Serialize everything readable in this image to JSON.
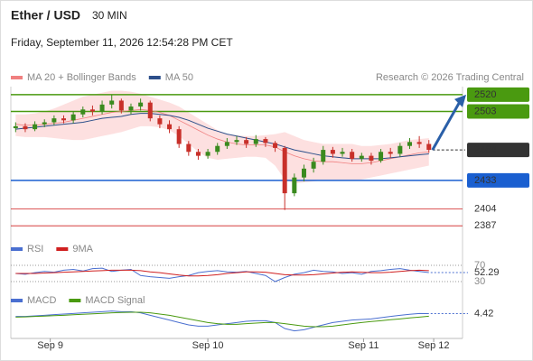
{
  "header": {
    "title": "Ether / USD",
    "interval": "30 MIN",
    "datetime": "Friday, September 11, 2026 12:54:28 PM CET",
    "credit": "Research © 2026 Trading Central"
  },
  "chart_data": [
    {
      "type": "candlestick",
      "xlim": [
        -0.5,
        46.5
      ],
      "xticks": [
        {
          "value": 3.6,
          "label": "Sep 9"
        },
        {
          "value": 20,
          "label": "Sep 10"
        },
        {
          "value": 36.2,
          "label": "Sep 11"
        },
        {
          "value": 43.5,
          "label": "Sep 12"
        }
      ],
      "ylim": [
        2378,
        2530
      ],
      "candles": {
        "up_color": "#3a8a1e",
        "down_color": "#c8302a",
        "open": [
          2486,
          2488,
          2485,
          2490,
          2492,
          2496,
          2494,
          2500,
          2505,
          2503,
          2510,
          2514,
          2504,
          2508,
          2512,
          2496,
          2490,
          2485,
          2470,
          2462,
          2458,
          2462,
          2468,
          2472,
          2474,
          2470,
          2475,
          2471,
          2466,
          2420,
          2436,
          2445,
          2452,
          2464,
          2460,
          2462,
          2455,
          2458,
          2453,
          2462,
          2460,
          2468,
          2472,
          2470
        ],
        "high": [
          2492,
          2491,
          2493,
          2495,
          2499,
          2499,
          2503,
          2508,
          2509,
          2514,
          2520,
          2516,
          2511,
          2516,
          2514,
          2499,
          2494,
          2488,
          2473,
          2465,
          2465,
          2471,
          2476,
          2478,
          2477,
          2479,
          2477,
          2473,
          2468,
          2440,
          2449,
          2456,
          2468,
          2467,
          2466,
          2465,
          2461,
          2461,
          2465,
          2466,
          2471,
          2476,
          2478,
          2474
        ],
        "low": [
          2482,
          2482,
          2483,
          2487,
          2489,
          2491,
          2491,
          2497,
          2499,
          2500,
          2506,
          2501,
          2500,
          2504,
          2493,
          2486,
          2481,
          2466,
          2458,
          2454,
          2455,
          2459,
          2465,
          2469,
          2466,
          2467,
          2467,
          2462,
          2403,
          2417,
          2432,
          2441,
          2449,
          2456,
          2457,
          2452,
          2452,
          2449,
          2451,
          2456,
          2457,
          2465,
          2466,
          2461
        ],
        "close": [
          2488,
          2485,
          2490,
          2492,
          2496,
          2494,
          2500,
          2505,
          2503,
          2510,
          2514,
          2504,
          2508,
          2512,
          2496,
          2490,
          2485,
          2470,
          2462,
          2458,
          2462,
          2468,
          2472,
          2474,
          2470,
          2475,
          2471,
          2466,
          2420,
          2436,
          2445,
          2452,
          2464,
          2460,
          2462,
          2455,
          2458,
          2453,
          2462,
          2460,
          2468,
          2472,
          2470,
          2464
        ]
      },
      "series": [
        {
          "name": "MA 20 + Bollinger Bands",
          "color": "#f08080",
          "band_color": "#fde0e0",
          "values": [
            2490,
            2489,
            2489,
            2490,
            2491,
            2492,
            2494,
            2496,
            2498,
            2500,
            2502,
            2503,
            2504,
            2505,
            2504,
            2502,
            2499,
            2494,
            2489,
            2484,
            2479,
            2475,
            2472,
            2470,
            2469,
            2469,
            2469,
            2467,
            2462,
            2458,
            2455,
            2453,
            2452,
            2452,
            2451,
            2450,
            2450,
            2451,
            2453,
            2455,
            2457,
            2459,
            2461,
            2462
          ],
          "upper": [
            2500,
            2500,
            2501,
            2503,
            2506,
            2510,
            2514,
            2518,
            2520,
            2522,
            2524,
            2524,
            2523,
            2521,
            2518,
            2515,
            2512,
            2508,
            2502,
            2496,
            2490,
            2484,
            2480,
            2479,
            2478,
            2478,
            2479,
            2480,
            2482,
            2478,
            2474,
            2472,
            2470,
            2470,
            2470,
            2470,
            2468,
            2468,
            2469,
            2470,
            2472,
            2474,
            2475,
            2476
          ],
          "lower": [
            2478,
            2477,
            2477,
            2477,
            2476,
            2475,
            2474,
            2474,
            2476,
            2478,
            2480,
            2482,
            2485,
            2488,
            2488,
            2487,
            2484,
            2478,
            2470,
            2462,
            2456,
            2454,
            2455,
            2456,
            2457,
            2457,
            2456,
            2448,
            2434,
            2430,
            2431,
            2432,
            2433,
            2433,
            2433,
            2433,
            2434,
            2436,
            2438,
            2440,
            2442,
            2444,
            2446,
            2448
          ]
        },
        {
          "name": "MA 50",
          "color": "#2c4f8a",
          "values": [
            2485,
            2486,
            2487,
            2488,
            2489,
            2490,
            2491,
            2492,
            2494,
            2496,
            2497,
            2498,
            2500,
            2501,
            2501,
            2500,
            2499,
            2497,
            2494,
            2490,
            2486,
            2483,
            2480,
            2478,
            2476,
            2474,
            2472,
            2470,
            2467,
            2464,
            2462,
            2460,
            2458,
            2457,
            2456,
            2455,
            2455,
            2455,
            2455,
            2456,
            2457,
            2458,
            2459,
            2460
          ]
        }
      ],
      "levels": [
        {
          "value": 2520,
          "color": "#4a9a10",
          "boxed": true
        },
        {
          "value": 2503,
          "color": "#4a9a10",
          "boxed": true
        },
        {
          "value": 2433,
          "color": "#1a5fd0",
          "boxed": true
        },
        {
          "value": 2404,
          "color": "#d02020",
          "boxed": false
        },
        {
          "value": 2387,
          "color": "#d02020",
          "boxed": false
        }
      ],
      "current_color": "#333333",
      "arrow_color": "#2a5fa8"
    },
    {
      "type": "line",
      "ylim": [
        10,
        90
      ],
      "yticks": [
        30,
        70
      ],
      "series": [
        {
          "name": "RSI",
          "color": "#4a6fd0",
          "values": [
            50,
            48,
            52,
            55,
            53,
            58,
            60,
            56,
            62,
            63,
            55,
            58,
            60,
            45,
            42,
            40,
            38,
            42,
            45,
            52,
            55,
            57,
            54,
            53,
            55,
            50,
            45,
            30,
            40,
            48,
            52,
            58,
            55,
            54,
            50,
            52,
            48,
            55,
            57,
            60,
            62,
            58,
            55,
            52.29
          ]
        },
        {
          "name": "9MA",
          "color": "#d02020",
          "values": [
            50,
            50,
            50,
            51,
            52,
            53,
            54,
            55,
            56,
            57,
            58,
            58,
            58,
            57,
            54,
            52,
            49,
            46,
            44,
            44,
            45,
            47,
            50,
            52,
            54,
            54,
            53,
            50,
            47,
            46,
            46,
            47,
            49,
            51,
            53,
            54,
            53,
            52,
            52,
            53,
            55,
            57,
            58,
            57
          ]
        }
      ]
    },
    {
      "type": "line",
      "ylim": [
        -14,
        10
      ],
      "series": [
        {
          "name": "MACD",
          "color": "#4a6fd0",
          "values": [
            2,
            2,
            2.5,
            3,
            3.5,
            4,
            4.5,
            5,
            5.5,
            6,
            6.5,
            6,
            6,
            5,
            3,
            1,
            -1,
            -3,
            -5,
            -6,
            -6,
            -5,
            -4,
            -3,
            -2,
            -1.5,
            -1.5,
            -3,
            -8,
            -10,
            -9,
            -7,
            -5,
            -3,
            -2,
            -1,
            -0.5,
            0,
            1,
            2,
            3,
            3.8,
            4.5,
            4.42
          ]
        },
        {
          "name": "MACD Signal",
          "color": "#4a9a10",
          "values": [
            1.5,
            1.7,
            2,
            2.3,
            2.7,
            3,
            3.4,
            3.8,
            4.2,
            4.6,
            5,
            5.3,
            5.5,
            5.5,
            5,
            4,
            3,
            1.5,
            0,
            -1.5,
            -3,
            -4,
            -4.5,
            -4.5,
            -4,
            -3.5,
            -3,
            -3,
            -4,
            -5,
            -6,
            -6.5,
            -6.5,
            -6,
            -5,
            -4,
            -3,
            -2.2,
            -1.5,
            -0.7,
            0,
            0.8,
            1.5,
            2.2
          ]
        }
      ]
    }
  ]
}
